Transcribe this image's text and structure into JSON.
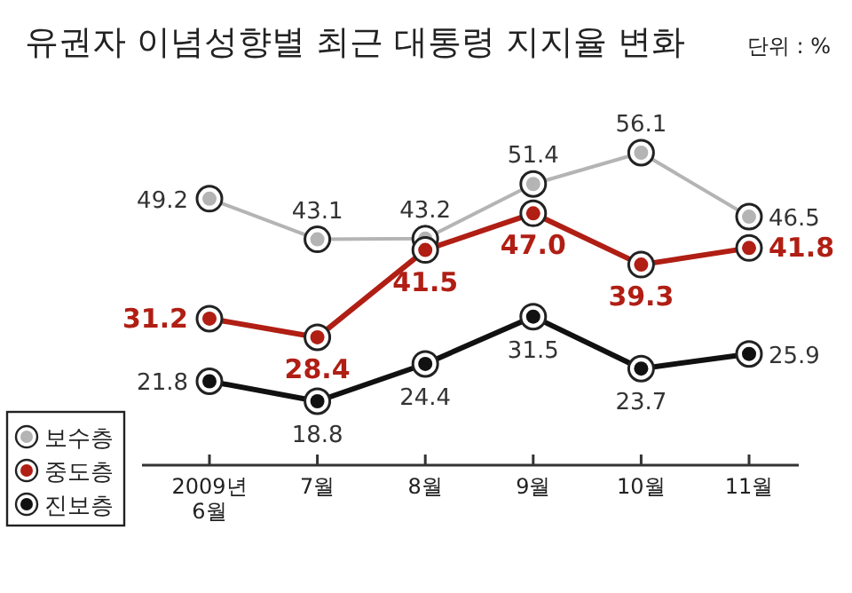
{
  "chart_data": {
    "type": "line",
    "title": "유권자 이념성향별 최근 대통령 지지율 변화",
    "subtitle": "단위 : %",
    "categories": [
      "2009년 6월",
      "7월",
      "8월",
      "9월",
      "10월",
      "11월"
    ],
    "series": [
      {
        "name": "보수층",
        "color": "#b4b4b4",
        "values": [
          49.2,
          43.1,
          43.2,
          51.4,
          56.1,
          46.5
        ],
        "value_labels": [
          "49.2",
          "43.1",
          "43.2",
          "51.4",
          "56.1",
          "46.5"
        ]
      },
      {
        "name": "중도층",
        "color": "#b01e14",
        "values": [
          31.2,
          28.4,
          41.5,
          47.0,
          39.3,
          41.8
        ],
        "value_labels": [
          "31.2",
          "28.4",
          "41.5",
          "47.0",
          "39.3",
          "41.8"
        ]
      },
      {
        "name": "진보층",
        "color": "#111111",
        "values": [
          21.8,
          18.8,
          24.4,
          31.5,
          23.7,
          25.9
        ],
        "value_labels": [
          "21.8",
          "18.8",
          "24.4",
          "31.5",
          "23.7",
          "25.9"
        ]
      }
    ],
    "legend": "left",
    "marker": "circle",
    "line_style": "solid"
  }
}
